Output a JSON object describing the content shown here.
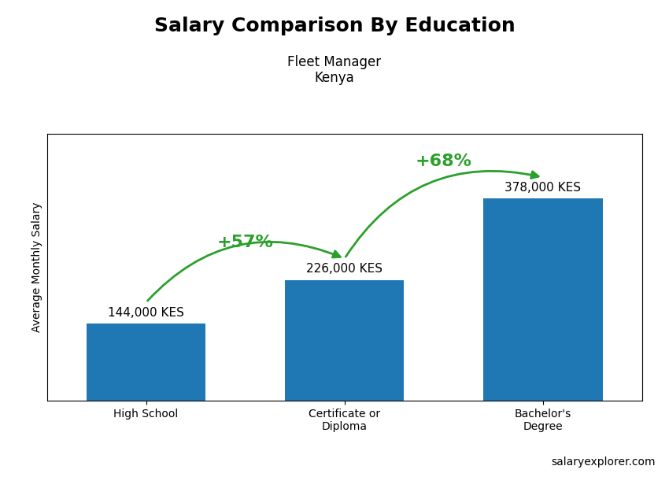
{
  "chart_data": {
    "type": "bar",
    "title": "Salary Comparison By Education",
    "subtitle": "Fleet Manager\nKenya",
    "y_label": "Average Monthly Salary",
    "categories": [
      "High School",
      "Certificate or\nDiploma",
      "Bachelor's\nDegree"
    ],
    "values": [
      144000,
      226000,
      378000
    ],
    "value_labels": [
      "144,000 KES",
      "226,000 KES",
      "378,000 KES"
    ],
    "data_labels": true,
    "ylim": [
      0,
      500000
    ],
    "tick_labels": "x",
    "grid": false,
    "annotations": [
      {
        "text": "+57%",
        "from": "High School",
        "to": "Certificate or\nDiploma"
      },
      {
        "text": "+68%",
        "from": "Certificate or\nDiploma",
        "to": "Bachelor's\nDegree"
      },
      {
        "text": "salaryexplorer.com"
      }
    ]
  }
}
